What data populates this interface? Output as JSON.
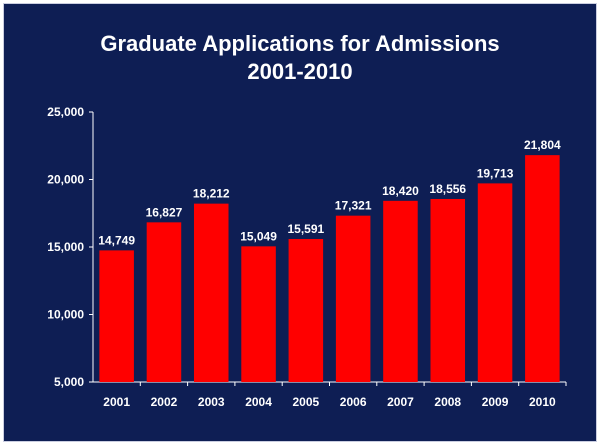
{
  "title": "Graduate Applications for Admissions",
  "subtitle": "2001-2010",
  "colors": {
    "background": "#0e1e54",
    "bar": "#ff0000",
    "text": "#ffffff",
    "axis": "#ffffff"
  },
  "chart_data": {
    "type": "bar",
    "title": "Graduate Applications for Admissions",
    "subtitle": "2001-2010",
    "xlabel": "",
    "ylabel": "",
    "categories": [
      "2001",
      "2002",
      "2003",
      "2004",
      "2005",
      "2006",
      "2007",
      "2008",
      "2009",
      "2010"
    ],
    "values": [
      14749,
      16827,
      18212,
      15049,
      15591,
      17321,
      18420,
      18556,
      19713,
      21804
    ],
    "data_labels": [
      "14,749",
      "16,827",
      "18,212",
      "15,049",
      "15,591",
      "17,321",
      "18,420",
      "18,556",
      "19,713",
      "21,804"
    ],
    "ylim": [
      5000,
      25000
    ],
    "yticks": [
      5000,
      10000,
      15000,
      20000,
      25000
    ],
    "ytick_labels": [
      "5,000",
      "10,000",
      "15,000",
      "20,000",
      "25,000"
    ],
    "grid": false,
    "legend": "none"
  }
}
